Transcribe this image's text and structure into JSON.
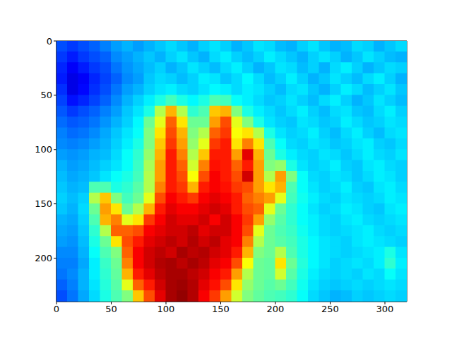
{
  "chart_data": {
    "type": "heatmap",
    "xlim": [
      0,
      320
    ],
    "ylim": [
      240,
      0
    ],
    "xticks": [
      0,
      50,
      100,
      150,
      200,
      250,
      300
    ],
    "yticks": [
      0,
      50,
      100,
      150,
      200
    ],
    "value_range": [
      0,
      100
    ],
    "cells": [
      [
        20,
        18,
        20,
        22,
        25,
        28,
        30,
        28,
        30,
        32,
        34,
        32,
        30,
        33,
        35,
        33,
        30,
        32,
        35,
        34,
        31,
        30,
        33,
        35,
        32,
        30,
        31,
        34,
        33,
        30,
        32,
        34
      ],
      [
        18,
        15,
        18,
        20,
        22,
        26,
        28,
        30,
        32,
        30,
        33,
        35,
        32,
        30,
        34,
        36,
        33,
        31,
        33,
        36,
        34,
        32,
        30,
        33,
        35,
        33,
        30,
        32,
        35,
        33,
        31,
        30
      ],
      [
        16,
        12,
        15,
        18,
        20,
        24,
        27,
        29,
        31,
        33,
        30,
        32,
        35,
        33,
        31,
        34,
        36,
        33,
        30,
        32,
        35,
        34,
        31,
        33,
        30,
        34,
        36,
        33,
        30,
        32,
        34,
        33
      ],
      [
        15,
        10,
        12,
        16,
        19,
        22,
        26,
        28,
        32,
        34,
        33,
        31,
        33,
        36,
        35,
        32,
        34,
        37,
        34,
        31,
        33,
        36,
        33,
        30,
        32,
        35,
        33,
        31,
        34,
        36,
        33,
        30
      ],
      [
        17,
        10,
        13,
        17,
        20,
        24,
        28,
        30,
        33,
        35,
        36,
        34,
        33,
        35,
        37,
        36,
        34,
        36,
        35,
        33,
        31,
        34,
        35,
        32,
        30,
        33,
        36,
        34,
        31,
        33,
        35,
        32
      ],
      [
        19,
        14,
        16,
        19,
        22,
        26,
        30,
        33,
        36,
        40,
        44,
        40,
        37,
        40,
        45,
        44,
        38,
        36,
        34,
        32,
        33,
        35,
        33,
        31,
        34,
        36,
        33,
        30,
        32,
        35,
        33,
        31
      ],
      [
        21,
        18,
        20,
        22,
        25,
        28,
        32,
        35,
        40,
        55,
        70,
        55,
        42,
        45,
        68,
        70,
        50,
        40,
        36,
        34,
        32,
        34,
        36,
        33,
        31,
        34,
        35,
        32,
        31,
        34,
        36,
        33
      ],
      [
        23,
        21,
        22,
        24,
        27,
        30,
        33,
        37,
        48,
        60,
        78,
        65,
        48,
        48,
        72,
        80,
        60,
        50,
        40,
        35,
        33,
        32,
        35,
        34,
        32,
        33,
        36,
        34,
        32,
        33,
        35,
        34
      ],
      [
        25,
        23,
        24,
        26,
        29,
        32,
        35,
        38,
        50,
        65,
        80,
        70,
        50,
        55,
        78,
        82,
        62,
        65,
        55,
        40,
        35,
        33,
        34,
        36,
        33,
        31,
        34,
        36,
        33,
        31,
        34,
        35
      ],
      [
        26,
        25,
        26,
        28,
        30,
        33,
        36,
        40,
        50,
        68,
        82,
        72,
        52,
        60,
        82,
        85,
        65,
        75,
        65,
        45,
        38,
        34,
        33,
        35,
        34,
        32,
        33,
        35,
        36,
        33,
        32,
        34
      ],
      [
        28,
        27,
        28,
        30,
        31,
        34,
        38,
        42,
        52,
        70,
        85,
        75,
        55,
        68,
        85,
        85,
        72,
        90,
        70,
        48,
        40,
        36,
        34,
        33,
        35,
        34,
        32,
        34,
        36,
        34,
        33,
        35
      ],
      [
        30,
        28,
        29,
        31,
        33,
        35,
        38,
        43,
        54,
        72,
        85,
        78,
        58,
        75,
        86,
        85,
        78,
        85,
        72,
        50,
        52,
        40,
        35,
        33,
        34,
        36,
        33,
        32,
        35,
        36,
        34,
        33
      ],
      [
        31,
        29,
        30,
        32,
        35,
        38,
        40,
        44,
        55,
        72,
        85,
        80,
        62,
        80,
        88,
        85,
        80,
        92,
        72,
        55,
        72,
        50,
        38,
        34,
        33,
        35,
        34,
        32,
        34,
        36,
        35,
        33
      ],
      [
        32,
        30,
        31,
        45,
        45,
        40,
        42,
        46,
        55,
        75,
        85,
        82,
        70,
        85,
        88,
        86,
        82,
        80,
        72,
        65,
        70,
        45,
        38,
        35,
        33,
        34,
        36,
        33,
        32,
        35,
        36,
        34
      ],
      [
        33,
        31,
        33,
        55,
        68,
        50,
        44,
        48,
        60,
        80,
        88,
        85,
        82,
        88,
        90,
        88,
        85,
        78,
        75,
        72,
        60,
        44,
        39,
        36,
        34,
        33,
        35,
        34,
        33,
        34,
        36,
        35
      ],
      [
        32,
        30,
        34,
        48,
        72,
        65,
        48,
        55,
        70,
        85,
        90,
        88,
        88,
        90,
        92,
        90,
        85,
        80,
        78,
        60,
        48,
        42,
        38,
        35,
        33,
        34,
        36,
        35,
        33,
        32,
        35,
        36
      ],
      [
        30,
        29,
        33,
        45,
        70,
        75,
        60,
        65,
        82,
        88,
        92,
        90,
        90,
        92,
        88,
        92,
        88,
        82,
        72,
        52,
        46,
        42,
        38,
        36,
        34,
        33,
        35,
        36,
        34,
        33,
        34,
        35
      ],
      [
        29,
        28,
        32,
        42,
        55,
        78,
        78,
        80,
        88,
        90,
        92,
        92,
        94,
        90,
        92,
        92,
        88,
        80,
        60,
        48,
        45,
        43,
        39,
        36,
        34,
        33,
        34,
        35,
        36,
        34,
        33,
        34
      ],
      [
        28,
        27,
        31,
        40,
        48,
        65,
        80,
        85,
        90,
        92,
        94,
        92,
        95,
        92,
        94,
        90,
        88,
        75,
        55,
        48,
        46,
        44,
        40,
        37,
        35,
        34,
        33,
        35,
        36,
        35,
        34,
        33
      ],
      [
        26,
        26,
        30,
        38,
        45,
        50,
        78,
        88,
        92,
        94,
        92,
        96,
        94,
        95,
        92,
        90,
        85,
        70,
        50,
        48,
        55,
        45,
        40,
        37,
        35,
        34,
        33,
        34,
        35,
        36,
        40,
        35
      ],
      [
        25,
        25,
        29,
        36,
        43,
        48,
        75,
        88,
        92,
        95,
        96,
        94,
        96,
        94,
        90,
        88,
        80,
        62,
        48,
        47,
        65,
        48,
        41,
        37,
        35,
        33,
        34,
        35,
        34,
        36,
        42,
        36
      ],
      [
        24,
        26,
        30,
        36,
        42,
        47,
        70,
        85,
        90,
        94,
        96,
        96,
        94,
        92,
        88,
        85,
        72,
        55,
        48,
        47,
        58,
        46,
        40,
        36,
        34,
        33,
        34,
        33,
        35,
        34,
        38,
        35
      ],
      [
        22,
        25,
        30,
        35,
        41,
        46,
        60,
        78,
        85,
        92,
        96,
        97,
        95,
        90,
        86,
        80,
        65,
        52,
        48,
        46,
        48,
        44,
        39,
        35,
        33,
        32,
        33,
        34,
        33,
        34,
        35,
        34
      ],
      [
        20,
        24,
        29,
        34,
        40,
        45,
        50,
        68,
        80,
        90,
        96,
        98,
        95,
        88,
        82,
        72,
        58,
        50,
        47,
        45,
        44,
        42,
        38,
        34,
        32,
        30,
        31,
        33,
        32,
        33,
        34,
        33
      ]
    ]
  }
}
